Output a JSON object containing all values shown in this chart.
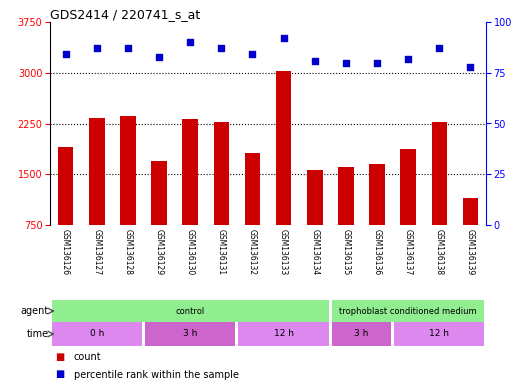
{
  "title": "GDS2414 / 220741_s_at",
  "samples": [
    "GSM136126",
    "GSM136127",
    "GSM136128",
    "GSM136129",
    "GSM136130",
    "GSM136131",
    "GSM136132",
    "GSM136133",
    "GSM136134",
    "GSM136135",
    "GSM136136",
    "GSM136137",
    "GSM136138",
    "GSM136139"
  ],
  "bar_values": [
    1900,
    2330,
    2360,
    1700,
    2310,
    2270,
    1820,
    3030,
    1560,
    1600,
    1650,
    1870,
    2270,
    1150
  ],
  "percentile_values": [
    84,
    87,
    87,
    83,
    90,
    87,
    84,
    92,
    81,
    80,
    80,
    82,
    87,
    78
  ],
  "bar_color": "#cc0000",
  "dot_color": "#0000cc",
  "ylim_left": [
    750,
    3750
  ],
  "ylim_right": [
    0,
    100
  ],
  "yticks_left": [
    750,
    1500,
    2250,
    3000,
    3750
  ],
  "yticks_right": [
    0,
    25,
    50,
    75,
    100
  ],
  "grid_values": [
    1500,
    2250,
    3000
  ],
  "background_color": "#ffffff",
  "sample_area_color": "#cccccc",
  "agent_control_color": "#90ee90",
  "agent_tropho_color": "#90ee90",
  "time_color_alt": "#cc77cc",
  "time_color_main": "#dd88dd"
}
